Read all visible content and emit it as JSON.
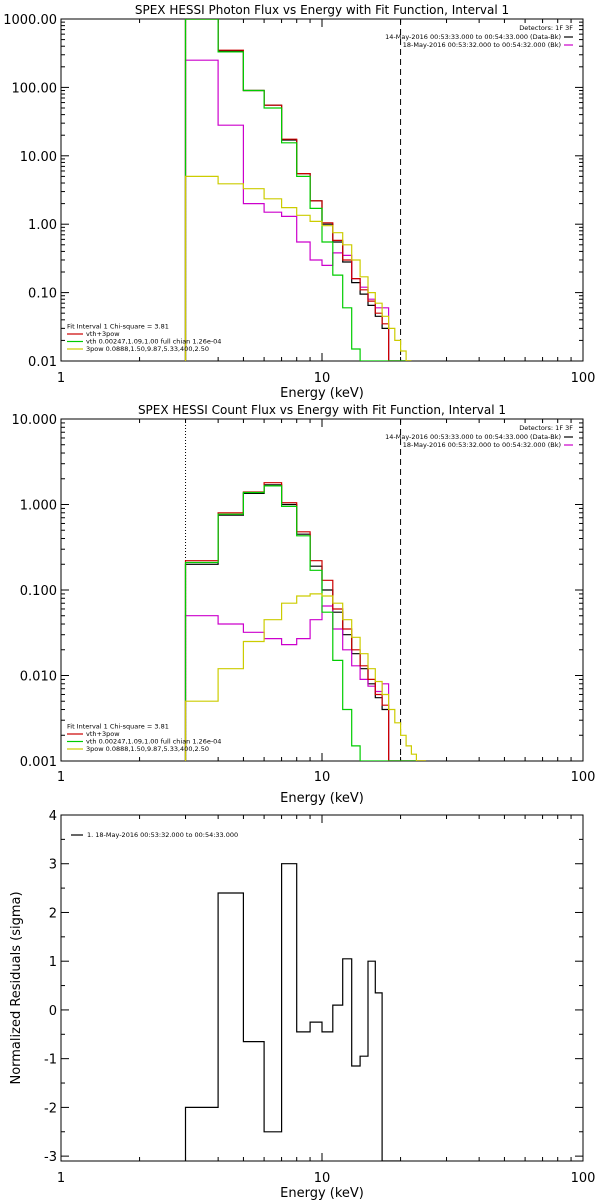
{
  "chart_data": [
    {
      "type": "line",
      "title": "SPEX HESSI Photon Flux vs Energy with Fit Function, Interval 1",
      "xlabel": "Energy (keV)",
      "ylabel": "",
      "xscale": "log",
      "yscale": "log",
      "xlim": [
        1,
        100
      ],
      "ylim": [
        0.01,
        1000
      ],
      "x_ticks": [
        "1",
        "10",
        "100"
      ],
      "y_ticks": [
        "1000.00",
        "100.00",
        "10.00",
        "1.00",
        "0.10",
        "0.01"
      ],
      "legend_top_right": {
        "detectors": "Detectors: 1F 3F",
        "lines": [
          {
            "text": "14-May-2016 00:53:33.000 to 00:54:33.000 (Data-Bk)",
            "color": "#000000"
          },
          {
            "text": "18-May-2016 00:53:32.000 to 00:54:32.000 (Bk)",
            "color": "#cc00cc"
          }
        ]
      },
      "legend_bottom_left": {
        "header": "Fit Interval 1   Chi-square = 3.81",
        "lines": [
          {
            "text": "vth+3pow",
            "color": "#cc0000"
          },
          {
            "text": "vth 0.00247,1.09,1.00  full chian 1.26e-04",
            "color": "#00cc00"
          },
          {
            "text": "3pow 0.0888,1.50,9.87,5.33,400,2.50",
            "color": "#cccc00"
          }
        ]
      },
      "vlines": [
        {
          "x": 3,
          "style": "dotted",
          "color": "#cccc00"
        },
        {
          "x": 20,
          "style": "dashed",
          "color": "#000000"
        }
      ],
      "edges": [
        3,
        4,
        5,
        6,
        7,
        8,
        9,
        10,
        11,
        12,
        13,
        14,
        15,
        16,
        17,
        18,
        19,
        20,
        21,
        22
      ],
      "series": [
        {
          "name": "Data-Bk",
          "color": "#000000",
          "values": [
            1000,
            340,
            90,
            55,
            17,
            5.5,
            2.2,
            1.0,
            0.55,
            0.28,
            0.14,
            0.095,
            0.065,
            0.045,
            0.03,
            0.01,
            0.01,
            0.01,
            0.01
          ]
        },
        {
          "name": "Bk",
          "color": "#cc00cc",
          "values": [
            250,
            28,
            2.0,
            1.5,
            1.3,
            0.55,
            0.3,
            0.25,
            0.38,
            0.35,
            0.16,
            0.12,
            0.08,
            0.06,
            0.06,
            0.01,
            0.01,
            0.01,
            0.01
          ]
        },
        {
          "name": "vth+3pow",
          "color": "#cc0000",
          "values": [
            1000,
            350,
            90,
            55,
            17.5,
            5.5,
            2.2,
            1.05,
            0.58,
            0.3,
            0.16,
            0.11,
            0.075,
            0.05,
            0.035,
            0.01,
            0.01,
            0.01,
            0.01
          ]
        },
        {
          "name": "vth",
          "color": "#00cc00",
          "values": [
            1000,
            330,
            90,
            50,
            15.5,
            5.0,
            1.7,
            0.55,
            0.18,
            0.06,
            0.015,
            0.01,
            0.01,
            0.01,
            0.01,
            0.01,
            0.01,
            0.01,
            0.01
          ]
        },
        {
          "name": "3pow",
          "color": "#cccc00",
          "values": [
            5.0,
            3.9,
            3.3,
            2.35,
            1.75,
            1.35,
            1.1,
            0.95,
            0.75,
            0.5,
            0.3,
            0.17,
            0.1,
            0.07,
            0.045,
            0.03,
            0.02,
            0.014,
            0.01
          ]
        }
      ]
    },
    {
      "type": "line",
      "title": "SPEX HESSI Count Flux vs Energy with Fit Function, Interval 1",
      "xlabel": "Energy (keV)",
      "ylabel": "",
      "xscale": "log",
      "yscale": "log",
      "xlim": [
        1,
        100
      ],
      "ylim": [
        0.001,
        10
      ],
      "x_ticks": [
        "1",
        "10",
        "100"
      ],
      "y_ticks": [
        "10.000",
        "1.000",
        "0.100",
        "0.010",
        "0.001"
      ],
      "legend_top_right": {
        "detectors": "Detectors: 1F 3F",
        "lines": [
          {
            "text": "14-May-2016 00:53:33.000 to 00:54:33.000 (Data-Bk)",
            "color": "#000000"
          },
          {
            "text": "18-May-2016 00:53:32.000 to 00:54:32.000 (Bk)",
            "color": "#cc00cc"
          }
        ]
      },
      "legend_bottom_left": {
        "header": "Fit Interval 1   Chi-square = 3.81",
        "lines": [
          {
            "text": "vth+3pow",
            "color": "#cc0000"
          },
          {
            "text": "vth 0.00247,1.09,1.00  full chian 1.26e-04",
            "color": "#00cc00"
          },
          {
            "text": "3pow 0.0888,1.50,9.87,5.33,400,2.50",
            "color": "#cccc00"
          }
        ]
      },
      "vlines": [
        {
          "x": 3,
          "style": "dotted",
          "color": "#000000"
        },
        {
          "x": 20,
          "style": "dashed",
          "color": "#000000"
        }
      ],
      "edges": [
        3,
        4,
        5,
        6,
        7,
        8,
        9,
        10,
        11,
        12,
        13,
        14,
        15,
        16,
        17,
        18,
        19,
        20,
        21,
        22,
        23,
        24,
        25
      ],
      "series": [
        {
          "name": "Data-Bk",
          "color": "#000000",
          "values": [
            0.2,
            0.75,
            1.35,
            1.7,
            1.0,
            0.45,
            0.19,
            0.1,
            0.055,
            0.03,
            0.018,
            0.012,
            0.008,
            0.0055,
            0.004,
            0.001,
            0.001,
            0.001,
            0.001,
            0.001,
            0.001,
            0.001
          ]
        },
        {
          "name": "Bk",
          "color": "#cc00cc",
          "values": [
            0.05,
            0.04,
            0.032,
            0.027,
            0.023,
            0.027,
            0.045,
            0.065,
            0.035,
            0.02,
            0.013,
            0.009,
            0.0075,
            0.0065,
            0.008,
            0.001,
            0.001,
            0.001,
            0.001,
            0.001,
            0.001,
            0.001
          ]
        },
        {
          "name": "vth+3pow",
          "color": "#cc0000",
          "values": [
            0.22,
            0.8,
            1.4,
            1.8,
            1.05,
            0.48,
            0.22,
            0.13,
            0.06,
            0.035,
            0.02,
            0.013,
            0.009,
            0.006,
            0.0045,
            0.001,
            0.001,
            0.001,
            0.001,
            0.001,
            0.001,
            0.001
          ]
        },
        {
          "name": "vth",
          "color": "#00cc00",
          "values": [
            0.21,
            0.77,
            1.38,
            1.65,
            0.95,
            0.43,
            0.17,
            0.055,
            0.015,
            0.004,
            0.0015,
            0.001,
            0.001,
            0.001,
            0.001,
            0.001,
            0.001,
            0.001,
            0.001,
            0.001,
            0.001,
            0.001
          ]
        },
        {
          "name": "3pow",
          "color": "#cccc00",
          "values": [
            0.005,
            0.012,
            0.025,
            0.045,
            0.07,
            0.085,
            0.09,
            0.085,
            0.07,
            0.045,
            0.028,
            0.018,
            0.012,
            0.0085,
            0.006,
            0.004,
            0.0028,
            0.002,
            0.0015,
            0.0012,
            0.001,
            0.001
          ]
        }
      ]
    },
    {
      "type": "line",
      "title": "",
      "xlabel": "Energy (keV)",
      "ylabel": "Normalized Residuals (sigma)",
      "xscale": "log",
      "yscale": "linear",
      "xlim": [
        1,
        100
      ],
      "ylim": [
        -3.1,
        4
      ],
      "x_ticks": [
        "1",
        "10",
        "100"
      ],
      "y_ticks": [
        "4",
        "3",
        "2",
        "1",
        "0",
        "-1",
        "-2",
        "-3"
      ],
      "legend_top_left": {
        "lines": [
          {
            "text": "1. 18-May-2016 00:53:32.000 to 00:54:33.000",
            "color": "#000000"
          }
        ]
      },
      "edges": [
        3,
        4,
        5,
        6,
        7,
        8,
        9,
        10,
        11,
        12,
        13,
        14,
        15,
        16,
        17,
        18,
        19,
        20
      ],
      "series": [
        {
          "name": "1. 18-May-2016 00:53:32.000 to 00:54:33.000",
          "color": "#000000",
          "values": [
            -2.0,
            2.4,
            -0.65,
            -2.5,
            3.0,
            -0.45,
            -0.25,
            -0.45,
            0.1,
            1.05,
            -1.15,
            -0.95,
            1.0,
            0.35,
            -3.1,
            -3.1,
            -3.1
          ]
        }
      ]
    }
  ]
}
